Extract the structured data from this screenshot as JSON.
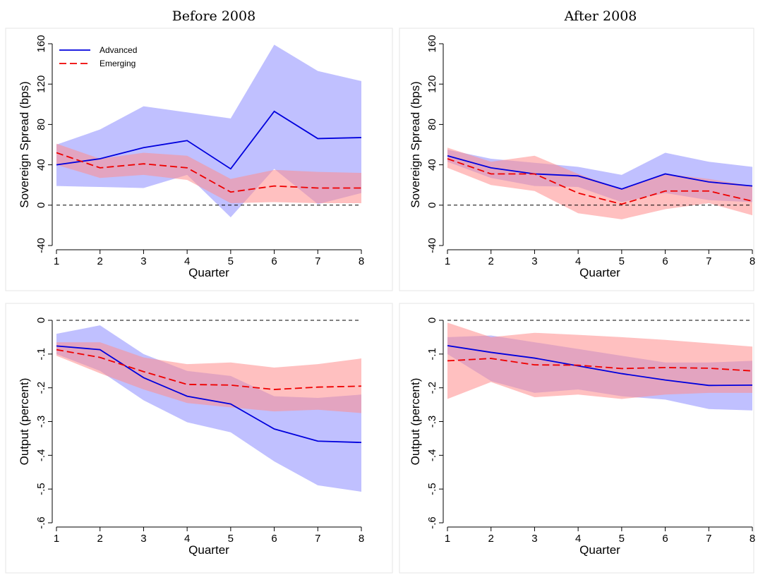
{
  "column_titles": [
    "Before 2008",
    "After 2008"
  ],
  "colors": {
    "advanced_line": "#0000dd",
    "advanced_band": "#8c8cff",
    "emerging_line": "#ee0000",
    "emerging_band": "#ff8c8c",
    "zero_line": "#000000",
    "panel_border": "#e6e6e6"
  },
  "legend": {
    "advanced_label": "Advanced",
    "emerging_label": "Emerging",
    "placement": "top-left of first panel"
  },
  "chart_data": [
    {
      "id": "spread_before",
      "type": "line",
      "column_title": "Before 2008",
      "xlabel": "Quarter",
      "ylabel": "Sovereign Spread (bps)",
      "x": [
        1,
        2,
        3,
        4,
        5,
        6,
        7,
        8
      ],
      "xticks": [
        "1",
        "2",
        "3",
        "4",
        "5",
        "6",
        "7",
        "8"
      ],
      "ylim": [
        -40,
        160
      ],
      "yticks": [
        -40,
        0,
        40,
        80,
        120,
        160
      ],
      "yticklabels": [
        "-40",
        "0",
        "40",
        "80",
        "120",
        "160"
      ],
      "zero_line": true,
      "show_legend": true,
      "series": [
        {
          "name": "Advanced",
          "values": [
            40,
            46,
            57,
            64,
            36,
            93,
            66,
            67
          ],
          "lower": [
            19,
            18,
            17,
            30,
            -12,
            36,
            1,
            12
          ],
          "upper": [
            60,
            75,
            98,
            92,
            86,
            159,
            133,
            123
          ]
        },
        {
          "name": "Emerging",
          "values": [
            52,
            37,
            41,
            37,
            13,
            19,
            17,
            17
          ],
          "lower": [
            40,
            27,
            30,
            25,
            2,
            3,
            2,
            2
          ],
          "upper": [
            61,
            46,
            52,
            49,
            26,
            35,
            33,
            32
          ]
        }
      ]
    },
    {
      "id": "spread_after",
      "type": "line",
      "column_title": "After 2008",
      "xlabel": "Quarter",
      "ylabel": "Sovereign Spread (bps)",
      "x": [
        1,
        2,
        3,
        4,
        5,
        6,
        7,
        8
      ],
      "xticks": [
        "1",
        "2",
        "3",
        "4",
        "5",
        "6",
        "7",
        "8"
      ],
      "ylim": [
        -40,
        160
      ],
      "yticks": [
        -40,
        0,
        40,
        80,
        120,
        160
      ],
      "yticklabels": [
        "-40",
        "0",
        "40",
        "80",
        "120",
        "160"
      ],
      "zero_line": true,
      "show_legend": false,
      "series": [
        {
          "name": "Advanced",
          "values": [
            49,
            37,
            31,
            29,
            16,
            31,
            23,
            19
          ],
          "lower": [
            43,
            27,
            19,
            18,
            3,
            12,
            5,
            3
          ],
          "upper": [
            55,
            46,
            42,
            38,
            30,
            52,
            43,
            38
          ]
        },
        {
          "name": "Emerging",
          "values": [
            46,
            31,
            31,
            12,
            1,
            14,
            14,
            4
          ],
          "lower": [
            37,
            20,
            14,
            -8,
            -14,
            -4,
            2,
            -10
          ],
          "upper": [
            57,
            43,
            49,
            31,
            16,
            31,
            26,
            19
          ]
        }
      ]
    },
    {
      "id": "output_before",
      "type": "line",
      "column_title": "Before 2008",
      "xlabel": "Quarter",
      "ylabel": "Output (percent)",
      "x": [
        1,
        2,
        3,
        4,
        5,
        6,
        7,
        8
      ],
      "xticks": [
        "1",
        "2",
        "3",
        "4",
        "5",
        "6",
        "7",
        "8"
      ],
      "ylim": [
        -0.6,
        0
      ],
      "yticks": [
        -0.6,
        -0.5,
        -0.4,
        -0.3,
        -0.2,
        -0.1,
        0
      ],
      "yticklabels": [
        "-.6",
        "-.5",
        "-.4",
        "-.3",
        "-.2",
        "-.1",
        "0"
      ],
      "zero_line": true,
      "show_legend": false,
      "series": [
        {
          "name": "Advanced",
          "values": [
            -0.076,
            -0.087,
            -0.17,
            -0.225,
            -0.248,
            -0.322,
            -0.358,
            -0.362
          ],
          "lower": [
            -0.1,
            -0.15,
            -0.237,
            -0.302,
            -0.332,
            -0.418,
            -0.489,
            -0.508
          ],
          "upper": [
            -0.04,
            -0.015,
            -0.1,
            -0.15,
            -0.165,
            -0.225,
            -0.23,
            -0.22
          ]
        },
        {
          "name": "Emerging",
          "values": [
            -0.087,
            -0.11,
            -0.152,
            -0.19,
            -0.192,
            -0.205,
            -0.198,
            -0.195
          ],
          "lower": [
            -0.105,
            -0.157,
            -0.205,
            -0.245,
            -0.258,
            -0.27,
            -0.265,
            -0.275
          ],
          "upper": [
            -0.065,
            -0.065,
            -0.11,
            -0.13,
            -0.125,
            -0.14,
            -0.13,
            -0.113
          ]
        }
      ]
    },
    {
      "id": "output_after",
      "type": "line",
      "column_title": "After 2008",
      "xlabel": "Quarter",
      "ylabel": "Output (percent)",
      "x": [
        1,
        2,
        3,
        4,
        5,
        6,
        7,
        8
      ],
      "xticks": [
        "1",
        "2",
        "3",
        "4",
        "5",
        "6",
        "7",
        "8"
      ],
      "ylim": [
        -0.6,
        0
      ],
      "yticks": [
        -0.6,
        -0.5,
        -0.4,
        -0.3,
        -0.2,
        -0.1,
        0
      ],
      "yticklabels": [
        "-.6",
        "-.5",
        "-.4",
        "-.3",
        "-.2",
        "-.1",
        "0"
      ],
      "zero_line": true,
      "show_legend": false,
      "series": [
        {
          "name": "Advanced",
          "values": [
            -0.075,
            -0.095,
            -0.112,
            -0.135,
            -0.158,
            -0.177,
            -0.193,
            -0.192
          ],
          "lower": [
            -0.1,
            -0.18,
            -0.215,
            -0.205,
            -0.225,
            -0.235,
            -0.263,
            -0.267
          ],
          "upper": [
            -0.05,
            -0.045,
            -0.065,
            -0.085,
            -0.105,
            -0.125,
            -0.125,
            -0.12
          ]
        },
        {
          "name": "Emerging",
          "values": [
            -0.12,
            -0.113,
            -0.132,
            -0.133,
            -0.143,
            -0.14,
            -0.142,
            -0.15
          ],
          "lower": [
            -0.233,
            -0.183,
            -0.228,
            -0.22,
            -0.233,
            -0.22,
            -0.215,
            -0.215
          ],
          "upper": [
            -0.007,
            -0.05,
            -0.037,
            -0.043,
            -0.05,
            -0.058,
            -0.068,
            -0.078
          ]
        }
      ]
    }
  ]
}
